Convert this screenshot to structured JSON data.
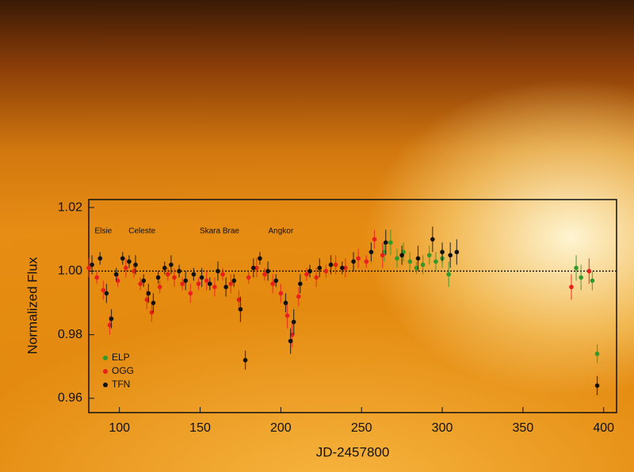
{
  "chart_data": {
    "type": "scatter",
    "xlabel": "JD-2457800",
    "ylabel": "Normalized Flux",
    "xlim": [
      81,
      408
    ],
    "ylim": [
      0.9555,
      1.0225
    ],
    "xticks": [
      100,
      150,
      200,
      250,
      300,
      350,
      400
    ],
    "yticks": [
      0.96,
      0.98,
      {
        "value": 1,
        "label": "1.00"
      },
      1.02
    ],
    "hline": 1,
    "annotations": [
      {
        "text": "Elsie",
        "x": 90
      },
      {
        "text": "Celeste",
        "x": 114
      },
      {
        "text": "Skara Brae",
        "x": 162
      },
      {
        "text": "Angkor",
        "x": 200
      }
    ],
    "legend": "lower left",
    "series": [
      {
        "name": "ELP",
        "color": "#2f9a2a",
        "x": [
          264,
          268,
          272,
          276,
          280,
          284,
          288,
          292,
          296,
          300,
          304,
          383,
          386,
          393,
          396
        ],
        "values": [
          1.006,
          1.009,
          1.004,
          1.006,
          1.003,
          1.001,
          1.002,
          1.005,
          1.003,
          1.004,
          0.999,
          1.001,
          0.998,
          0.997,
          0.974
        ],
        "errors": [
          0.003,
          0.004,
          0.003,
          0.003,
          0.003,
          0.002,
          0.003,
          0.003,
          0.003,
          0.003,
          0.004,
          0.004,
          0.004,
          0.003,
          0.003
        ]
      },
      {
        "name": "OGG",
        "color": "#e8201a",
        "x": [
          81,
          86,
          90,
          94,
          99,
          104,
          109,
          113,
          117,
          120,
          125,
          130,
          134,
          139,
          144,
          149,
          154,
          159,
          164,
          169,
          174,
          180,
          185,
          190,
          195,
          200,
          204,
          207,
          211,
          216,
          222,
          228,
          234,
          240,
          248,
          253,
          258,
          263,
          380,
          391
        ],
        "values": [
          1.001,
          0.998,
          0.994,
          0.983,
          0.997,
          1.001,
          1.0,
          0.996,
          0.991,
          0.987,
          0.995,
          0.999,
          0.998,
          0.996,
          0.993,
          0.996,
          0.997,
          0.995,
          0.999,
          0.996,
          0.991,
          0.998,
          1.001,
          0.999,
          0.996,
          0.993,
          0.986,
          0.98,
          0.992,
          0.999,
          0.998,
          1.0,
          1.002,
          1.001,
          1.004,
          1.003,
          1.01,
          1.005,
          0.995,
          1.0
        ],
        "errors": [
          0.003,
          0.002,
          0.003,
          0.003,
          0.002,
          0.003,
          0.002,
          0.002,
          0.003,
          0.003,
          0.002,
          0.002,
          0.003,
          0.002,
          0.003,
          0.002,
          0.003,
          0.003,
          0.002,
          0.003,
          0.003,
          0.002,
          0.003,
          0.002,
          0.003,
          0.003,
          0.004,
          0.004,
          0.003,
          0.002,
          0.003,
          0.002,
          0.003,
          0.003,
          0.003,
          0.002,
          0.003,
          0.004,
          0.004,
          0.004
        ]
      },
      {
        "name": "TFN",
        "color": "#111111",
        "x": [
          83,
          88,
          92,
          95,
          98,
          102,
          106,
          110,
          115,
          118,
          121,
          124,
          128,
          132,
          137,
          141,
          146,
          151,
          156,
          161,
          166,
          171,
          175,
          178,
          183,
          187,
          192,
          197,
          203,
          206,
          208,
          212,
          218,
          224,
          231,
          238,
          245,
          256,
          265,
          275,
          285,
          294,
          300,
          305,
          309,
          396
        ],
        "values": [
          1.002,
          1.004,
          0.993,
          0.985,
          0.999,
          1.004,
          1.003,
          1.002,
          0.997,
          0.993,
          0.99,
          0.998,
          1.001,
          1.002,
          1.0,
          0.997,
          0.999,
          0.998,
          0.996,
          1.0,
          0.995,
          0.997,
          0.988,
          0.972,
          1.001,
          1.004,
          1.0,
          0.997,
          0.99,
          0.978,
          0.984,
          0.996,
          1.0,
          1.001,
          1.002,
          1.001,
          1.003,
          1.006,
          1.009,
          1.005,
          1.004,
          1.01,
          1.006,
          1.005,
          1.006,
          0.964
        ],
        "errors": [
          0.003,
          0.002,
          0.003,
          0.003,
          0.002,
          0.002,
          0.002,
          0.003,
          0.002,
          0.003,
          0.003,
          0.002,
          0.002,
          0.003,
          0.002,
          0.003,
          0.002,
          0.003,
          0.002,
          0.003,
          0.003,
          0.002,
          0.004,
          0.003,
          0.003,
          0.002,
          0.003,
          0.002,
          0.003,
          0.004,
          0.004,
          0.003,
          0.002,
          0.003,
          0.003,
          0.002,
          0.003,
          0.003,
          0.004,
          0.003,
          0.004,
          0.004,
          0.003,
          0.004,
          0.004,
          0.003
        ]
      }
    ]
  }
}
